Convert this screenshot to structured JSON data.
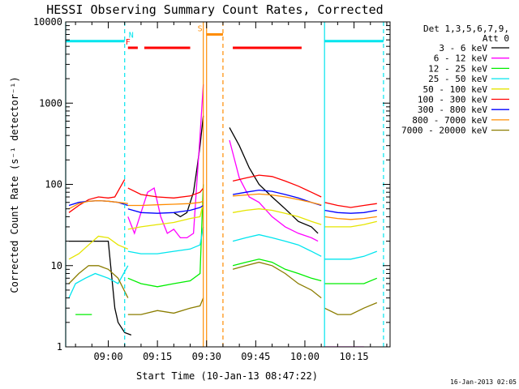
{
  "chart_data": {
    "type": "line",
    "title": "HESSI Observing Summary Count Rates, Corrected",
    "xlabel": "Start Time (10-Jan-13 08:47:22)",
    "ylabel": "Corrected Count Rate (s⁻¹ detector⁻¹)",
    "y_scale": "log",
    "ylim": [
      1,
      10000
    ],
    "xlim": [
      "08:47",
      "10:26"
    ],
    "x_ticks": [
      "09:00",
      "09:15",
      "09:30",
      "09:45",
      "10:00",
      "10:15"
    ],
    "y_ticks": [
      "1",
      "10",
      "100",
      "1000",
      "10000"
    ],
    "grid": false,
    "legend_header": [
      "Det 1,3,5,6,7,9,",
      "Att 0"
    ],
    "legend_position": "right",
    "series": [
      {
        "name": "3 - 6 keV",
        "color": "#000000",
        "segments": [
          {
            "x": [
              "08:48",
              "08:52",
              "08:56",
              "09:00",
              "09:02",
              "09:03",
              "09:05",
              "09:07"
            ],
            "y": [
              20,
              20,
              20,
              20,
              3,
              2,
              1.5,
              1.4
            ]
          },
          {
            "x": [
              "09:20",
              "09:22",
              "09:24",
              "09:26",
              "09:27",
              "09:28",
              "09:29"
            ],
            "y": [
              45,
              40,
              45,
              80,
              150,
              300,
              700
            ]
          },
          {
            "x": [
              "09:37",
              "09:40",
              "09:43",
              "09:46",
              "09:50",
              "09:54",
              "09:58",
              "10:02",
              "10:04"
            ],
            "y": [
              500,
              300,
              160,
              100,
              70,
              50,
              35,
              30,
              25
            ]
          }
        ]
      },
      {
        "name": "6 - 12 keV",
        "color": "#ff00ff",
        "segments": [
          {
            "x": [
              "09:06",
              "09:08",
              "09:10",
              "09:12",
              "09:14",
              "09:16",
              "09:18",
              "09:20",
              "09:22",
              "09:24",
              "09:26",
              "09:27",
              "09:28",
              "09:29"
            ],
            "y": [
              40,
              25,
              45,
              80,
              90,
              40,
              25,
              28,
              22,
              22,
              25,
              100,
              400,
              1700
            ]
          },
          {
            "x": [
              "09:37",
              "09:40",
              "09:43",
              "09:46",
              "09:50",
              "09:54",
              "09:58",
              "10:02",
              "10:04"
            ],
            "y": [
              350,
              120,
              70,
              60,
              40,
              30,
              25,
              22,
              20
            ]
          },
          {
            "x": [
              "10:06",
              "10:10",
              "10:14",
              "10:18"
            ],
            "y": [
              1,
              1,
              1,
              1
            ]
          }
        ]
      },
      {
        "name": "12 - 25 keV",
        "color": "#00ee00",
        "segments": [
          {
            "x": [
              "08:50",
              "08:55"
            ],
            "y": [
              2.5,
              2.5
            ]
          },
          {
            "x": [
              "09:06",
              "09:10",
              "09:15",
              "09:20",
              "09:25",
              "09:28",
              "09:29"
            ],
            "y": [
              7,
              6,
              5.5,
              6,
              6.5,
              8,
              100
            ]
          },
          {
            "x": [
              "09:38",
              "09:42",
              "09:46",
              "09:50",
              "09:54",
              "09:58",
              "10:02",
              "10:05"
            ],
            "y": [
              10,
              11,
              12,
              11,
              9,
              8,
              7,
              6.5
            ]
          },
          {
            "x": [
              "10:06",
              "10:10",
              "10:14",
              "10:18",
              "10:22"
            ],
            "y": [
              6,
              6,
              6,
              6,
              7
            ]
          }
        ]
      },
      {
        "name": "25 - 50 keV",
        "color": "#00e5ee",
        "segments": [
          {
            "x": [
              "08:48",
              "08:50",
              "08:53",
              "08:56",
              "09:00",
              "09:03",
              "09:06"
            ],
            "y": [
              4,
              6,
              7,
              8,
              7,
              6,
              10
            ]
          },
          {
            "x": [
              "09:06",
              "09:10",
              "09:15",
              "09:20",
              "09:25",
              "09:28",
              "09:29"
            ],
            "y": [
              15,
              14,
              14,
              15,
              16,
              18,
              30
            ]
          },
          {
            "x": [
              "09:38",
              "09:42",
              "09:46",
              "09:50",
              "09:54",
              "09:58",
              "10:02",
              "10:05"
            ],
            "y": [
              20,
              22,
              24,
              22,
              20,
              18,
              15,
              13
            ]
          },
          {
            "x": [
              "10:06",
              "10:10",
              "10:14",
              "10:18",
              "10:22"
            ],
            "y": [
              12,
              12,
              12,
              13,
              15
            ]
          }
        ]
      },
      {
        "name": "50 - 100 keV",
        "color": "#e5e500",
        "segments": [
          {
            "x": [
              "08:48",
              "08:51",
              "08:54",
              "08:57",
              "09:00",
              "09:03",
              "09:06"
            ],
            "y": [
              12,
              14,
              18,
              23,
              22,
              18,
              16
            ]
          },
          {
            "x": [
              "09:06",
              "09:10",
              "09:15",
              "09:20",
              "09:25",
              "09:28",
              "09:29"
            ],
            "y": [
              28,
              30,
              32,
              34,
              38,
              40,
              60
            ]
          },
          {
            "x": [
              "09:38",
              "09:42",
              "09:46",
              "09:50",
              "09:54",
              "09:58",
              "10:02",
              "10:05"
            ],
            "y": [
              45,
              48,
              50,
              48,
              44,
              40,
              35,
              32
            ]
          },
          {
            "x": [
              "10:06",
              "10:10",
              "10:14",
              "10:18",
              "10:22"
            ],
            "y": [
              30,
              30,
              30,
              32,
              35
            ]
          }
        ]
      },
      {
        "name": "100 - 300 keV",
        "color": "#ff0000",
        "segments": [
          {
            "x": [
              "08:48",
              "08:51",
              "08:54",
              "08:57",
              "09:00",
              "09:02",
              "09:05"
            ],
            "y": [
              45,
              55,
              65,
              70,
              68,
              70,
              115
            ]
          },
          {
            "x": [
              "09:06",
              "09:10",
              "09:15",
              "09:20",
              "09:25",
              "09:28",
              "09:29"
            ],
            "y": [
              90,
              75,
              70,
              68,
              72,
              80,
              90
            ]
          },
          {
            "x": [
              "09:38",
              "09:42",
              "09:46",
              "09:50",
              "09:54",
              "09:58",
              "10:02",
              "10:05"
            ],
            "y": [
              110,
              120,
              130,
              125,
              110,
              95,
              80,
              70
            ]
          },
          {
            "x": [
              "10:06",
              "10:10",
              "10:14",
              "10:18",
              "10:22"
            ],
            "y": [
              60,
              55,
              52,
              55,
              58
            ]
          }
        ]
      },
      {
        "name": "300 - 800 keV",
        "color": "#0000ff",
        "segments": [
          {
            "x": [
              "08:48",
              "08:51",
              "08:54",
              "08:57",
              "09:00",
              "09:03",
              "09:06"
            ],
            "y": [
              55,
              60,
              62,
              63,
              62,
              60,
              55
            ]
          },
          {
            "x": [
              "09:06",
              "09:10",
              "09:15",
              "09:20",
              "09:25",
              "09:28",
              "09:29"
            ],
            "y": [
              50,
              45,
              44,
              45,
              48,
              52,
              55
            ]
          },
          {
            "x": [
              "09:38",
              "09:42",
              "09:46",
              "09:50",
              "09:54",
              "09:58",
              "10:02",
              "10:05"
            ],
            "y": [
              75,
              80,
              85,
              82,
              75,
              68,
              60,
              55
            ]
          },
          {
            "x": [
              "10:06",
              "10:10",
              "10:14",
              "10:18",
              "10:22"
            ],
            "y": [
              48,
              45,
              44,
              45,
              48
            ]
          }
        ]
      },
      {
        "name": "800 - 7000 keV",
        "color": "#ff8c00",
        "segments": [
          {
            "x": [
              "08:48",
              "08:51",
              "08:54",
              "08:57",
              "09:00",
              "09:03",
              "09:06"
            ],
            "y": [
              50,
              58,
              62,
              63,
              62,
              60,
              58
            ]
          },
          {
            "x": [
              "09:06",
              "09:10",
              "09:15",
              "09:20",
              "09:25",
              "09:28",
              "09:29"
            ],
            "y": [
              55,
              55,
              56,
              57,
              58,
              60,
              62
            ]
          },
          {
            "x": [
              "09:38",
              "09:42",
              "09:46",
              "09:50",
              "09:54",
              "09:58",
              "10:02",
              "10:05"
            ],
            "y": [
              72,
              74,
              76,
              74,
              70,
              65,
              60,
              56
            ]
          },
          {
            "x": [
              "10:06",
              "10:10",
              "10:14",
              "10:18",
              "10:22"
            ],
            "y": [
              40,
              38,
              37,
              38,
              40
            ]
          }
        ]
      },
      {
        "name": "7000 - 20000 keV",
        "color": "#8b7d00",
        "segments": [
          {
            "x": [
              "08:48",
              "08:51",
              "08:54",
              "08:57",
              "09:00",
              "09:03",
              "09:06"
            ],
            "y": [
              6,
              8,
              10,
              10,
              9,
              7,
              4
            ]
          },
          {
            "x": [
              "09:06",
              "09:10",
              "09:15",
              "09:20",
              "09:25",
              "09:28",
              "09:29"
            ],
            "y": [
              2.5,
              2.5,
              2.8,
              2.6,
              3,
              3.2,
              4
            ]
          },
          {
            "x": [
              "09:38",
              "09:42",
              "09:46",
              "09:50",
              "09:54",
              "09:58",
              "10:02",
              "10:05"
            ],
            "y": [
              9,
              10,
              11,
              10,
              8,
              6,
              5,
              4
            ]
          },
          {
            "x": [
              "10:06",
              "10:10",
              "10:14",
              "10:18",
              "10:22"
            ],
            "y": [
              3,
              2.5,
              2.5,
              3,
              3.5
            ]
          }
        ]
      }
    ],
    "flags": [
      {
        "label": "F",
        "color": "#ff0000",
        "label_x": "09:06",
        "y": 4800,
        "bars": [
          [
            "09:06",
            "09:09"
          ],
          [
            "09:11",
            "09:25"
          ],
          [
            "09:38",
            "09:59"
          ]
        ]
      },
      {
        "label": "N",
        "color": "#00e5ee",
        "label_x": "09:07",
        "y": 5800,
        "bars": [
          [
            "08:47",
            "09:05"
          ],
          [
            "10:06",
            "10:24"
          ]
        ]
      },
      {
        "label": "S",
        "color": "#ff8c00",
        "label_x": "09:28",
        "y": 7000,
        "bars": [
          [
            "09:30",
            "09:35"
          ]
        ]
      }
    ],
    "vertical_lines": [
      {
        "x": "08:47",
        "color": "#00e5ee",
        "style": "solid"
      },
      {
        "x": "09:05",
        "color": "#00e5ee",
        "style": "dashed"
      },
      {
        "x": "10:06",
        "color": "#00e5ee",
        "style": "solid"
      },
      {
        "x": "10:24",
        "color": "#00e5ee",
        "style": "dashed"
      },
      {
        "x": "09:29",
        "color": "#ff8c00",
        "style": "solid"
      },
      {
        "x": "09:30",
        "color": "#ff8c00",
        "style": "solid"
      },
      {
        "x": "09:35",
        "color": "#ff8c00",
        "style": "dashed"
      }
    ],
    "timestamp": "16-Jan-2013 02:05"
  }
}
